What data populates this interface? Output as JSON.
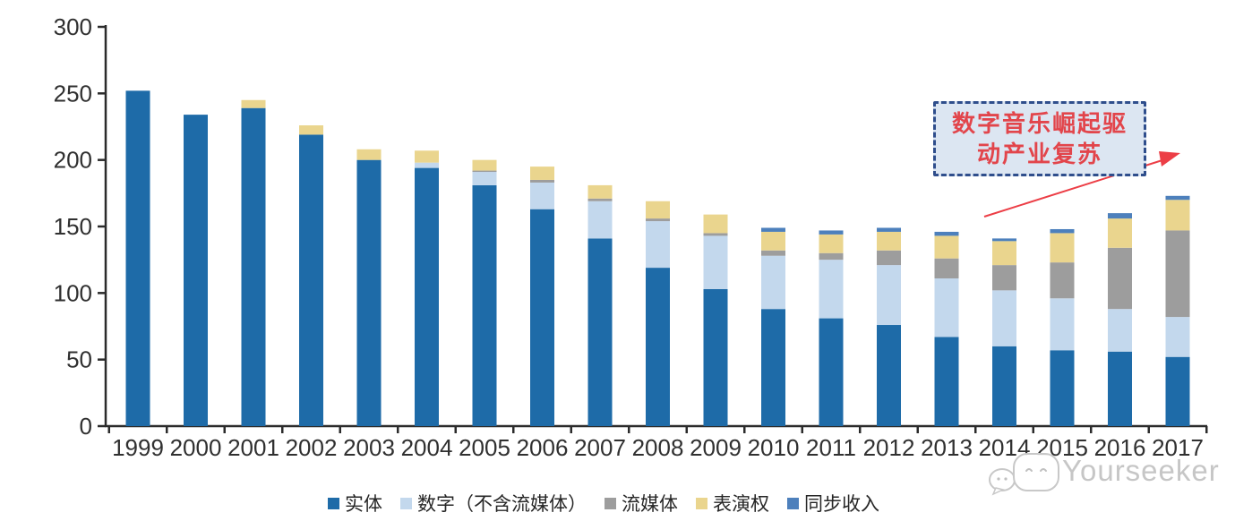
{
  "chart_data": {
    "type": "bar",
    "stacked": true,
    "title": "",
    "xlabel": "",
    "ylabel": "",
    "categories": [
      "1999",
      "2000",
      "2001",
      "2002",
      "2003",
      "2004",
      "2005",
      "2006",
      "2007",
      "2008",
      "2009",
      "2010",
      "2011",
      "2012",
      "2013",
      "2014",
      "2015",
      "2016",
      "2017"
    ],
    "series": [
      {
        "name": "实体",
        "color": "#1E6BA8",
        "values": [
          252,
          234,
          239,
          219,
          200,
          194,
          181,
          163,
          141,
          119,
          103,
          88,
          81,
          76,
          67,
          60,
          57,
          56,
          52
        ]
      },
      {
        "name": "数字（不含流媒体）",
        "color": "#C3D8ED",
        "values": [
          0,
          0,
          0,
          0,
          0,
          4,
          10,
          20,
          28,
          35,
          40,
          40,
          44,
          45,
          44,
          42,
          39,
          32,
          30
        ]
      },
      {
        "name": "流媒体",
        "color": "#9D9D9D",
        "values": [
          0,
          0,
          0,
          0,
          0,
          0,
          1,
          2,
          2,
          2,
          2,
          4,
          5,
          11,
          15,
          19,
          27,
          46,
          65
        ]
      },
      {
        "name": "表演权",
        "color": "#EAD58E",
        "values": [
          0,
          0,
          6,
          7,
          8,
          9,
          8,
          10,
          10,
          13,
          14,
          14,
          14,
          14,
          17,
          18,
          22,
          22,
          23
        ]
      },
      {
        "name": "同步收入",
        "color": "#4D80BC",
        "values": [
          0,
          0,
          0,
          0,
          0,
          0,
          0,
          0,
          0,
          0,
          0,
          3,
          3,
          3,
          3,
          2,
          3,
          4,
          3
        ]
      }
    ],
    "ylim": [
      0,
      300
    ],
    "yticks": [
      0,
      50,
      100,
      150,
      200,
      250,
      300
    ],
    "grid": false,
    "legend_position": "bottom"
  },
  "annotation": {
    "line1": "数字音乐崛起驱",
    "line2": "动产业复苏",
    "border_color": "#2F4E8C",
    "fill_color": "#DCE6F2",
    "text_color": "#E2454B",
    "arrow_color": "#EC3E46"
  },
  "watermark": {
    "text": "Yourseeker",
    "color": "#c6c6c6"
  },
  "axis": {
    "color": "#2B2B2B",
    "label_color": "#303030"
  }
}
